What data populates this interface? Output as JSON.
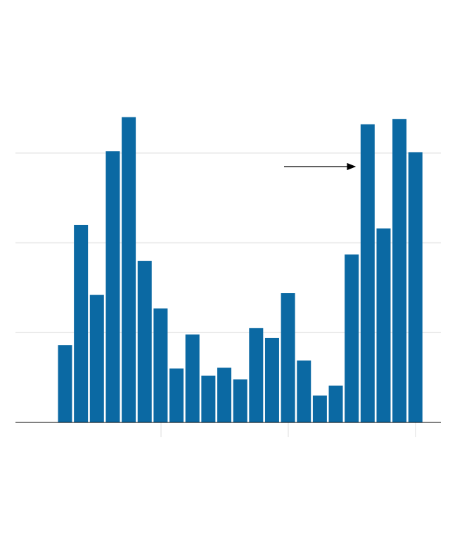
{
  "chart_data": {
    "type": "bar",
    "categories": [
      null,
      null,
      null,
      null,
      null,
      null,
      null,
      null,
      null,
      null,
      null,
      null,
      null,
      null,
      null,
      null,
      null,
      null,
      null,
      null,
      null,
      null,
      null
    ],
    "values": [
      86,
      220,
      142,
      302,
      340,
      180,
      127,
      60,
      98,
      52,
      61,
      48,
      105,
      94,
      144,
      69,
      30,
      41,
      187,
      332,
      216,
      338,
      301
    ],
    "color": "#0b69a3",
    "ylim": [
      0,
      470
    ],
    "yticks": [
      0,
      100,
      200,
      300
    ],
    "grid": true
  }
}
